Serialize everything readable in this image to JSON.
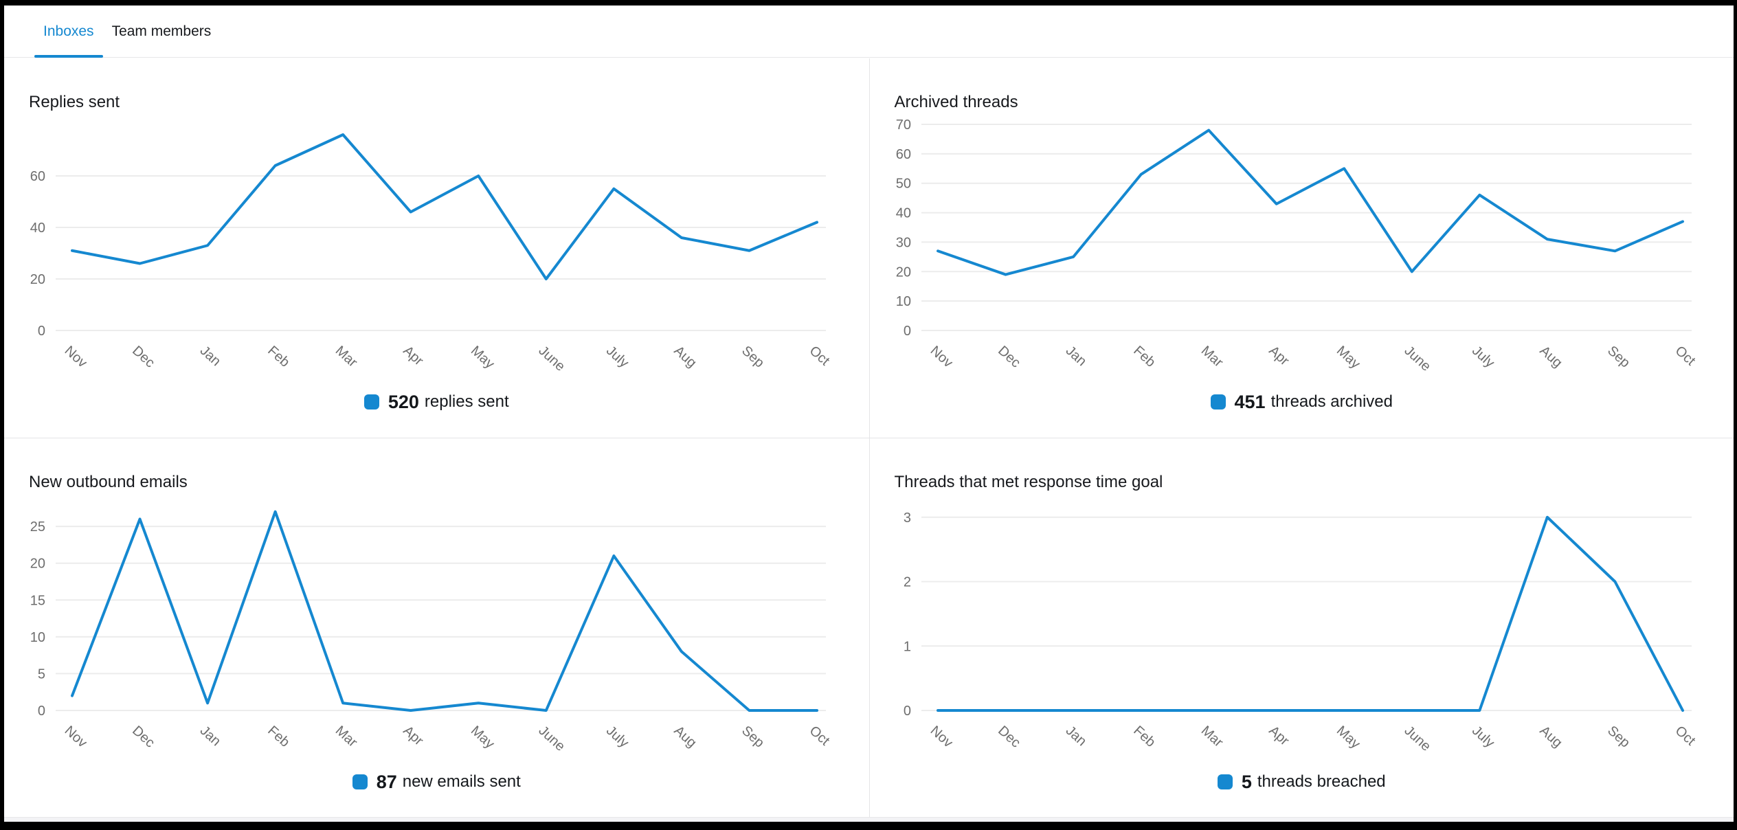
{
  "tabs": [
    {
      "label": "Inboxes",
      "active": true
    },
    {
      "label": "Team members",
      "active": false
    }
  ],
  "colors": {
    "accent": "#1588d0",
    "gridline": "#ececec",
    "axis_label": "#6d6d6d",
    "text": "#17191d"
  },
  "chart_data": [
    {
      "type": "line",
      "title": "Replies sent",
      "categories": [
        "Nov",
        "Dec",
        "Jan",
        "Feb",
        "Mar",
        "Apr",
        "May",
        "June",
        "July",
        "Aug",
        "Sep",
        "Oct"
      ],
      "values": [
        31,
        26,
        33,
        64,
        76,
        46,
        60,
        20,
        55,
        36,
        31,
        42
      ],
      "yticks": [
        0,
        20,
        40,
        60
      ],
      "ylim": [
        0,
        80
      ],
      "grid": true,
      "legend": {
        "value": "520",
        "label": "replies sent",
        "position": "bottom-center"
      }
    },
    {
      "type": "line",
      "title": "Archived threads",
      "categories": [
        "Nov",
        "Dec",
        "Jan",
        "Feb",
        "Mar",
        "Apr",
        "May",
        "June",
        "July",
        "Aug",
        "Sep",
        "Oct"
      ],
      "values": [
        27,
        19,
        25,
        53,
        68,
        43,
        55,
        20,
        46,
        31,
        27,
        37
      ],
      "yticks": [
        0,
        10,
        20,
        30,
        40,
        50,
        60,
        70
      ],
      "ylim": [
        0,
        70
      ],
      "grid": true,
      "legend": {
        "value": "451",
        "label": "threads archived",
        "position": "bottom-center"
      }
    },
    {
      "type": "line",
      "title": "New outbound emails",
      "categories": [
        "Nov",
        "Dec",
        "Jan",
        "Feb",
        "Mar",
        "Apr",
        "May",
        "June",
        "July",
        "Aug",
        "Sep",
        "Oct"
      ],
      "values": [
        2,
        26,
        1,
        27,
        1,
        0,
        1,
        0,
        21,
        8,
        0,
        0
      ],
      "yticks": [
        0,
        5,
        10,
        15,
        20,
        25
      ],
      "ylim": [
        0,
        28
      ],
      "grid": true,
      "legend": {
        "value": "87",
        "label": "new emails sent",
        "position": "bottom-center"
      }
    },
    {
      "type": "line",
      "title": "Threads that met response time goal",
      "categories": [
        "Nov",
        "Dec",
        "Jan",
        "Feb",
        "Mar",
        "Apr",
        "May",
        "June",
        "July",
        "Aug",
        "Sep",
        "Oct"
      ],
      "values": [
        0,
        0,
        0,
        0,
        0,
        0,
        0,
        0,
        0,
        3,
        2,
        0
      ],
      "yticks": [
        0,
        1,
        2,
        3
      ],
      "ylim": [
        0,
        3.2
      ],
      "grid": true,
      "legend": {
        "value": "5",
        "label": "threads breached",
        "position": "bottom-center"
      }
    }
  ]
}
